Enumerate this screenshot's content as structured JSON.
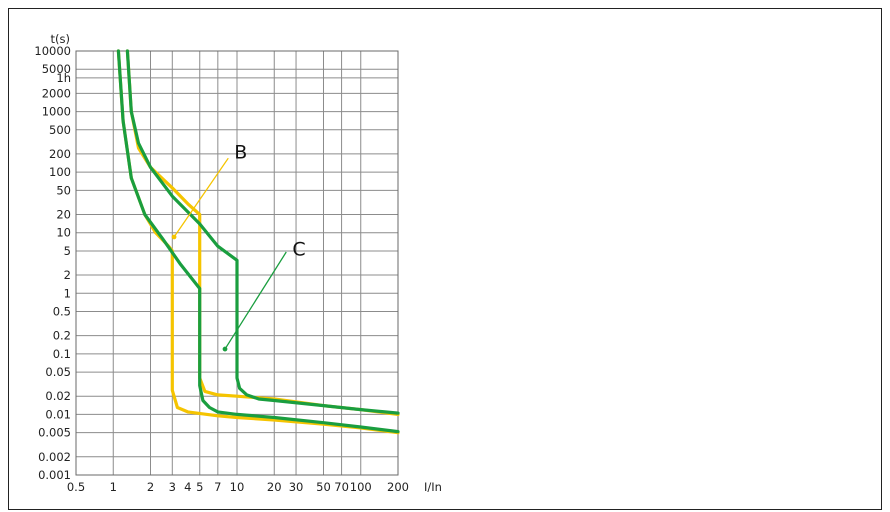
{
  "chart_data": {
    "type": "line",
    "title": "",
    "xlabel": "I/In",
    "ylabel": "t(s)",
    "x_scale": "log",
    "y_scale": "log",
    "xlim": [
      0.5,
      200
    ],
    "ylim": [
      0.001,
      10000
    ],
    "grid": true,
    "x_ticks": [
      {
        "v": 0.5,
        "label": "0.5"
      },
      {
        "v": 1,
        "label": "1"
      },
      {
        "v": 2,
        "label": "2"
      },
      {
        "v": 3,
        "label": "3"
      },
      {
        "v": 4,
        "label": "4"
      },
      {
        "v": 5,
        "label": "5"
      },
      {
        "v": 7,
        "label": "7"
      },
      {
        "v": 10,
        "label": "10"
      },
      {
        "v": 20,
        "label": "20"
      },
      {
        "v": 30,
        "label": "30"
      },
      {
        "v": 50,
        "label": "50"
      },
      {
        "v": 70,
        "label": "70"
      },
      {
        "v": 100,
        "label": "100"
      },
      {
        "v": 200,
        "label": "200"
      }
    ],
    "x_gridlines": [
      1,
      2,
      3,
      5,
      7,
      10,
      20,
      30,
      50,
      70,
      100
    ],
    "y_ticks": [
      {
        "v": 10000,
        "label": "10000"
      },
      {
        "v": 5000,
        "label": "5000"
      },
      {
        "v": 3600,
        "label": "1h"
      },
      {
        "v": 2000,
        "label": "2000"
      },
      {
        "v": 1000,
        "label": "1000"
      },
      {
        "v": 500,
        "label": "500"
      },
      {
        "v": 200,
        "label": "200"
      },
      {
        "v": 100,
        "label": "100"
      },
      {
        "v": 50,
        "label": "50"
      },
      {
        "v": 20,
        "label": "20"
      },
      {
        "v": 10,
        "label": "10"
      },
      {
        "v": 5,
        "label": "5"
      },
      {
        "v": 2,
        "label": "2"
      },
      {
        "v": 1,
        "label": "1"
      },
      {
        "v": 0.5,
        "label": "0.5"
      },
      {
        "v": 0.2,
        "label": "0.2"
      },
      {
        "v": 0.1,
        "label": "0.1"
      },
      {
        "v": 0.05,
        "label": "0.05"
      },
      {
        "v": 0.02,
        "label": "0.02"
      },
      {
        "v": 0.01,
        "label": "0.01"
      },
      {
        "v": 0.005,
        "label": "0.005"
      },
      {
        "v": 0.002,
        "label": "0.002"
      },
      {
        "v": 0.001,
        "label": "0.001"
      }
    ],
    "series": [
      {
        "color": "#f5c400",
        "points": [
          [
            1.3,
            10000
          ],
          [
            1.4,
            1000
          ],
          [
            1.6,
            250
          ],
          [
            2.0,
            120
          ],
          [
            3.0,
            55
          ],
          [
            4.0,
            30
          ],
          [
            5.0,
            20
          ],
          [
            5.0,
            0.04
          ],
          [
            5.5,
            0.024
          ],
          [
            7,
            0.021
          ],
          [
            10,
            0.02
          ],
          [
            20,
            0.018
          ],
          [
            50,
            0.014
          ],
          [
            100,
            0.012
          ],
          [
            200,
            0.01
          ]
        ]
      },
      {
        "color": "#f5c400",
        "points": [
          [
            1.1,
            10000
          ],
          [
            1.2,
            700
          ],
          [
            1.4,
            80
          ],
          [
            1.8,
            20
          ],
          [
            2.2,
            10
          ],
          [
            2.8,
            6
          ],
          [
            3.0,
            5
          ],
          [
            3.0,
            0.025
          ],
          [
            3.3,
            0.013
          ],
          [
            4,
            0.011
          ],
          [
            7,
            0.0095
          ],
          [
            10,
            0.0089
          ],
          [
            20,
            0.0081
          ],
          [
            50,
            0.0069
          ],
          [
            100,
            0.006
          ],
          [
            200,
            0.005
          ]
        ]
      },
      {
        "color": "#1a9e3f",
        "points": [
          [
            1.3,
            10000
          ],
          [
            1.4,
            1000
          ],
          [
            1.6,
            300
          ],
          [
            2.0,
            120
          ],
          [
            3.0,
            40
          ],
          [
            5,
            14
          ],
          [
            7,
            6
          ],
          [
            10,
            3.5
          ],
          [
            10,
            0.04
          ],
          [
            10.5,
            0.027
          ],
          [
            12,
            0.021
          ],
          [
            15,
            0.018
          ],
          [
            20,
            0.017
          ],
          [
            50,
            0.014
          ],
          [
            100,
            0.012
          ],
          [
            200,
            0.0105
          ]
        ]
      },
      {
        "color": "#1a9e3f",
        "points": [
          [
            1.1,
            10000
          ],
          [
            1.2,
            700
          ],
          [
            1.4,
            80
          ],
          [
            1.8,
            20
          ],
          [
            2.5,
            8
          ],
          [
            3.5,
            3
          ],
          [
            5.0,
            1.2
          ],
          [
            5.0,
            0.03
          ],
          [
            5.3,
            0.017
          ],
          [
            6,
            0.013
          ],
          [
            7,
            0.011
          ],
          [
            10,
            0.01
          ],
          [
            20,
            0.0089
          ],
          [
            50,
            0.0073
          ],
          [
            100,
            0.0062
          ],
          [
            200,
            0.0052
          ]
        ]
      }
    ],
    "annotations": [
      {
        "label": "B",
        "color": "#f5c400",
        "from": [
          3.1,
          8.5
        ],
        "to": [
          8.5,
          170
        ],
        "label_at": [
          9.5,
          220
        ]
      },
      {
        "label": "C",
        "color": "#1a9e3f",
        "from": [
          8.0,
          0.12
        ],
        "to": [
          25,
          4.8
        ],
        "label_at": [
          28,
          5.5
        ]
      }
    ]
  }
}
